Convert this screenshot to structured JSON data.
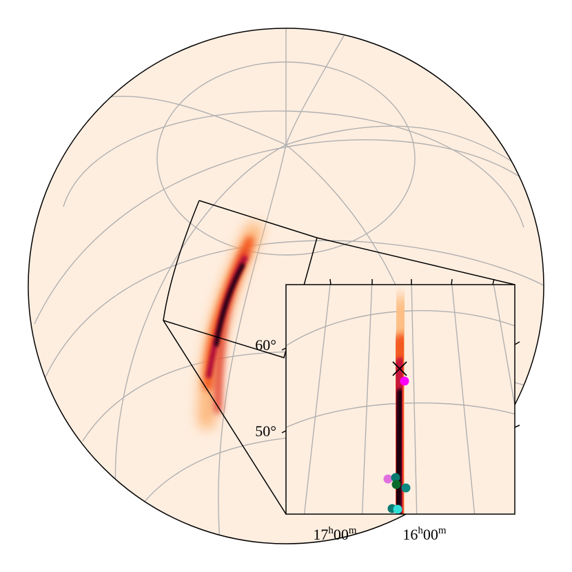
{
  "inset": {
    "dec_labels": [
      "60°",
      "50°"
    ],
    "ra_labels": [
      {
        "hours": "17",
        "hour_unit": "h",
        "minutes": "00",
        "minute_unit": "m"
      },
      {
        "hours": "16",
        "hour_unit": "h",
        "minutes": "00",
        "minute_unit": "m"
      }
    ]
  }
}
